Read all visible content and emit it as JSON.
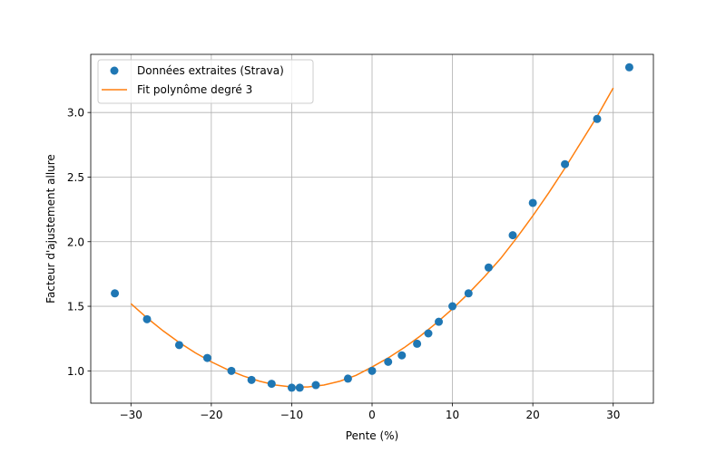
{
  "chart_data": {
    "type": "scatter",
    "title": "",
    "xlabel": "Pente (%)",
    "ylabel": "Facteur d'ajustement allure",
    "xlim": [
      -35,
      35
    ],
    "ylim": [
      0.75,
      3.45
    ],
    "xticks": [
      -30,
      -20,
      -10,
      0,
      10,
      20,
      30
    ],
    "xtick_labels": [
      "−30",
      "−20",
      "−10",
      "0",
      "10",
      "20",
      "30"
    ],
    "yticks": [
      1.0,
      1.5,
      2.0,
      2.5,
      3.0
    ],
    "ytick_labels": [
      "1.0",
      "1.5",
      "2.0",
      "2.5",
      "3.0"
    ],
    "grid": true,
    "legend_position": "top-left",
    "series": [
      {
        "name": "Données extraites (Strava)",
        "kind": "scatter",
        "color": "#1f77b4",
        "x": [
          -32,
          -28,
          -24,
          -20.5,
          -17.5,
          -15,
          -12.5,
          -10,
          -9,
          -7,
          -3,
          0,
          2,
          3.7,
          5.6,
          7,
          8.3,
          10,
          12,
          14.5,
          17.5,
          20,
          24,
          28,
          32
        ],
        "y": [
          1.6,
          1.4,
          1.2,
          1.1,
          1.0,
          0.93,
          0.9,
          0.87,
          0.87,
          0.89,
          0.94,
          1.0,
          1.07,
          1.12,
          1.21,
          1.29,
          1.38,
          1.5,
          1.6,
          1.8,
          2.05,
          2.3,
          2.6,
          2.95,
          3.35
        ]
      },
      {
        "name": "Fit polynôme degré 3",
        "kind": "line",
        "color": "#ff7f0e",
        "x": [
          -30,
          -28,
          -26,
          -24,
          -22,
          -20,
          -18,
          -16,
          -14,
          -12,
          -10,
          -8,
          -6,
          -4,
          -2,
          0,
          2,
          4,
          6,
          8,
          10,
          12,
          14,
          16,
          18,
          20,
          22,
          24,
          26,
          28,
          30
        ],
        "y": [
          1.52,
          1.41,
          1.31,
          1.22,
          1.14,
          1.07,
          1.01,
          0.96,
          0.92,
          0.89,
          0.875,
          0.875,
          0.89,
          0.92,
          0.965,
          1.03,
          1.1,
          1.18,
          1.27,
          1.37,
          1.48,
          1.6,
          1.73,
          1.87,
          2.03,
          2.2,
          2.38,
          2.57,
          2.77,
          2.97,
          3.19
        ]
      }
    ]
  }
}
